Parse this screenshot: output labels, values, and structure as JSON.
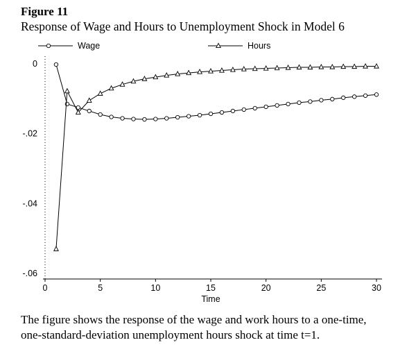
{
  "figure": {
    "label": "Figure 11",
    "title": "Response of Wage and Hours to Unemployment Shock in Model 6",
    "caption_lines": [
      "The figure shows the response of the wage and work hours to a one-time,",
      "one-standard-deviation unemployment hours shock at time t=1."
    ]
  },
  "chart_data": {
    "type": "line",
    "title": "Response of Wage and Hours to Unemployment Shock in Model 6",
    "xlabel": "Time",
    "ylabel": "",
    "xlim": [
      0,
      31
    ],
    "ylim": [
      -0.06,
      0.002
    ],
    "grid": false,
    "legend_position": "top",
    "xticks": [
      0,
      5,
      10,
      15,
      20,
      25,
      30
    ],
    "yticks": [
      0,
      -0.02,
      -0.04,
      -0.06
    ],
    "ytick_labels": [
      "0",
      "-.02",
      "-.04",
      "-.06"
    ],
    "line_color": "#000000",
    "x": [
      1,
      2,
      3,
      4,
      5,
      6,
      7,
      8,
      9,
      10,
      11,
      12,
      13,
      14,
      15,
      16,
      17,
      18,
      19,
      20,
      21,
      22,
      23,
      24,
      25,
      26,
      27,
      28,
      29,
      30
    ],
    "series": [
      {
        "name": "Wage",
        "marker": "circle",
        "values": [
          -0.0002,
          -0.0115,
          -0.0125,
          -0.0135,
          -0.0145,
          -0.0152,
          -0.0156,
          -0.0158,
          -0.0159,
          -0.0158,
          -0.0156,
          -0.0153,
          -0.015,
          -0.0147,
          -0.0143,
          -0.0139,
          -0.0135,
          -0.0131,
          -0.0127,
          -0.0123,
          -0.0119,
          -0.0115,
          -0.0111,
          -0.0108,
          -0.0104,
          -0.0101,
          -0.0097,
          -0.0094,
          -0.0091,
          -0.0088
        ]
      },
      {
        "name": "Hours",
        "marker": "triangle",
        "values": [
          -0.053,
          -0.0078,
          -0.0139,
          -0.0105,
          -0.0085,
          -0.007,
          -0.0059,
          -0.005,
          -0.0043,
          -0.0038,
          -0.0033,
          -0.0029,
          -0.0026,
          -0.0023,
          -0.0021,
          -0.0019,
          -0.0017,
          -0.0015,
          -0.0014,
          -0.0013,
          -0.0012,
          -0.0011,
          -0.001,
          -0.001,
          -0.0009,
          -0.0009,
          -0.0008,
          -0.0008,
          -0.0007,
          -0.0007
        ]
      }
    ]
  }
}
